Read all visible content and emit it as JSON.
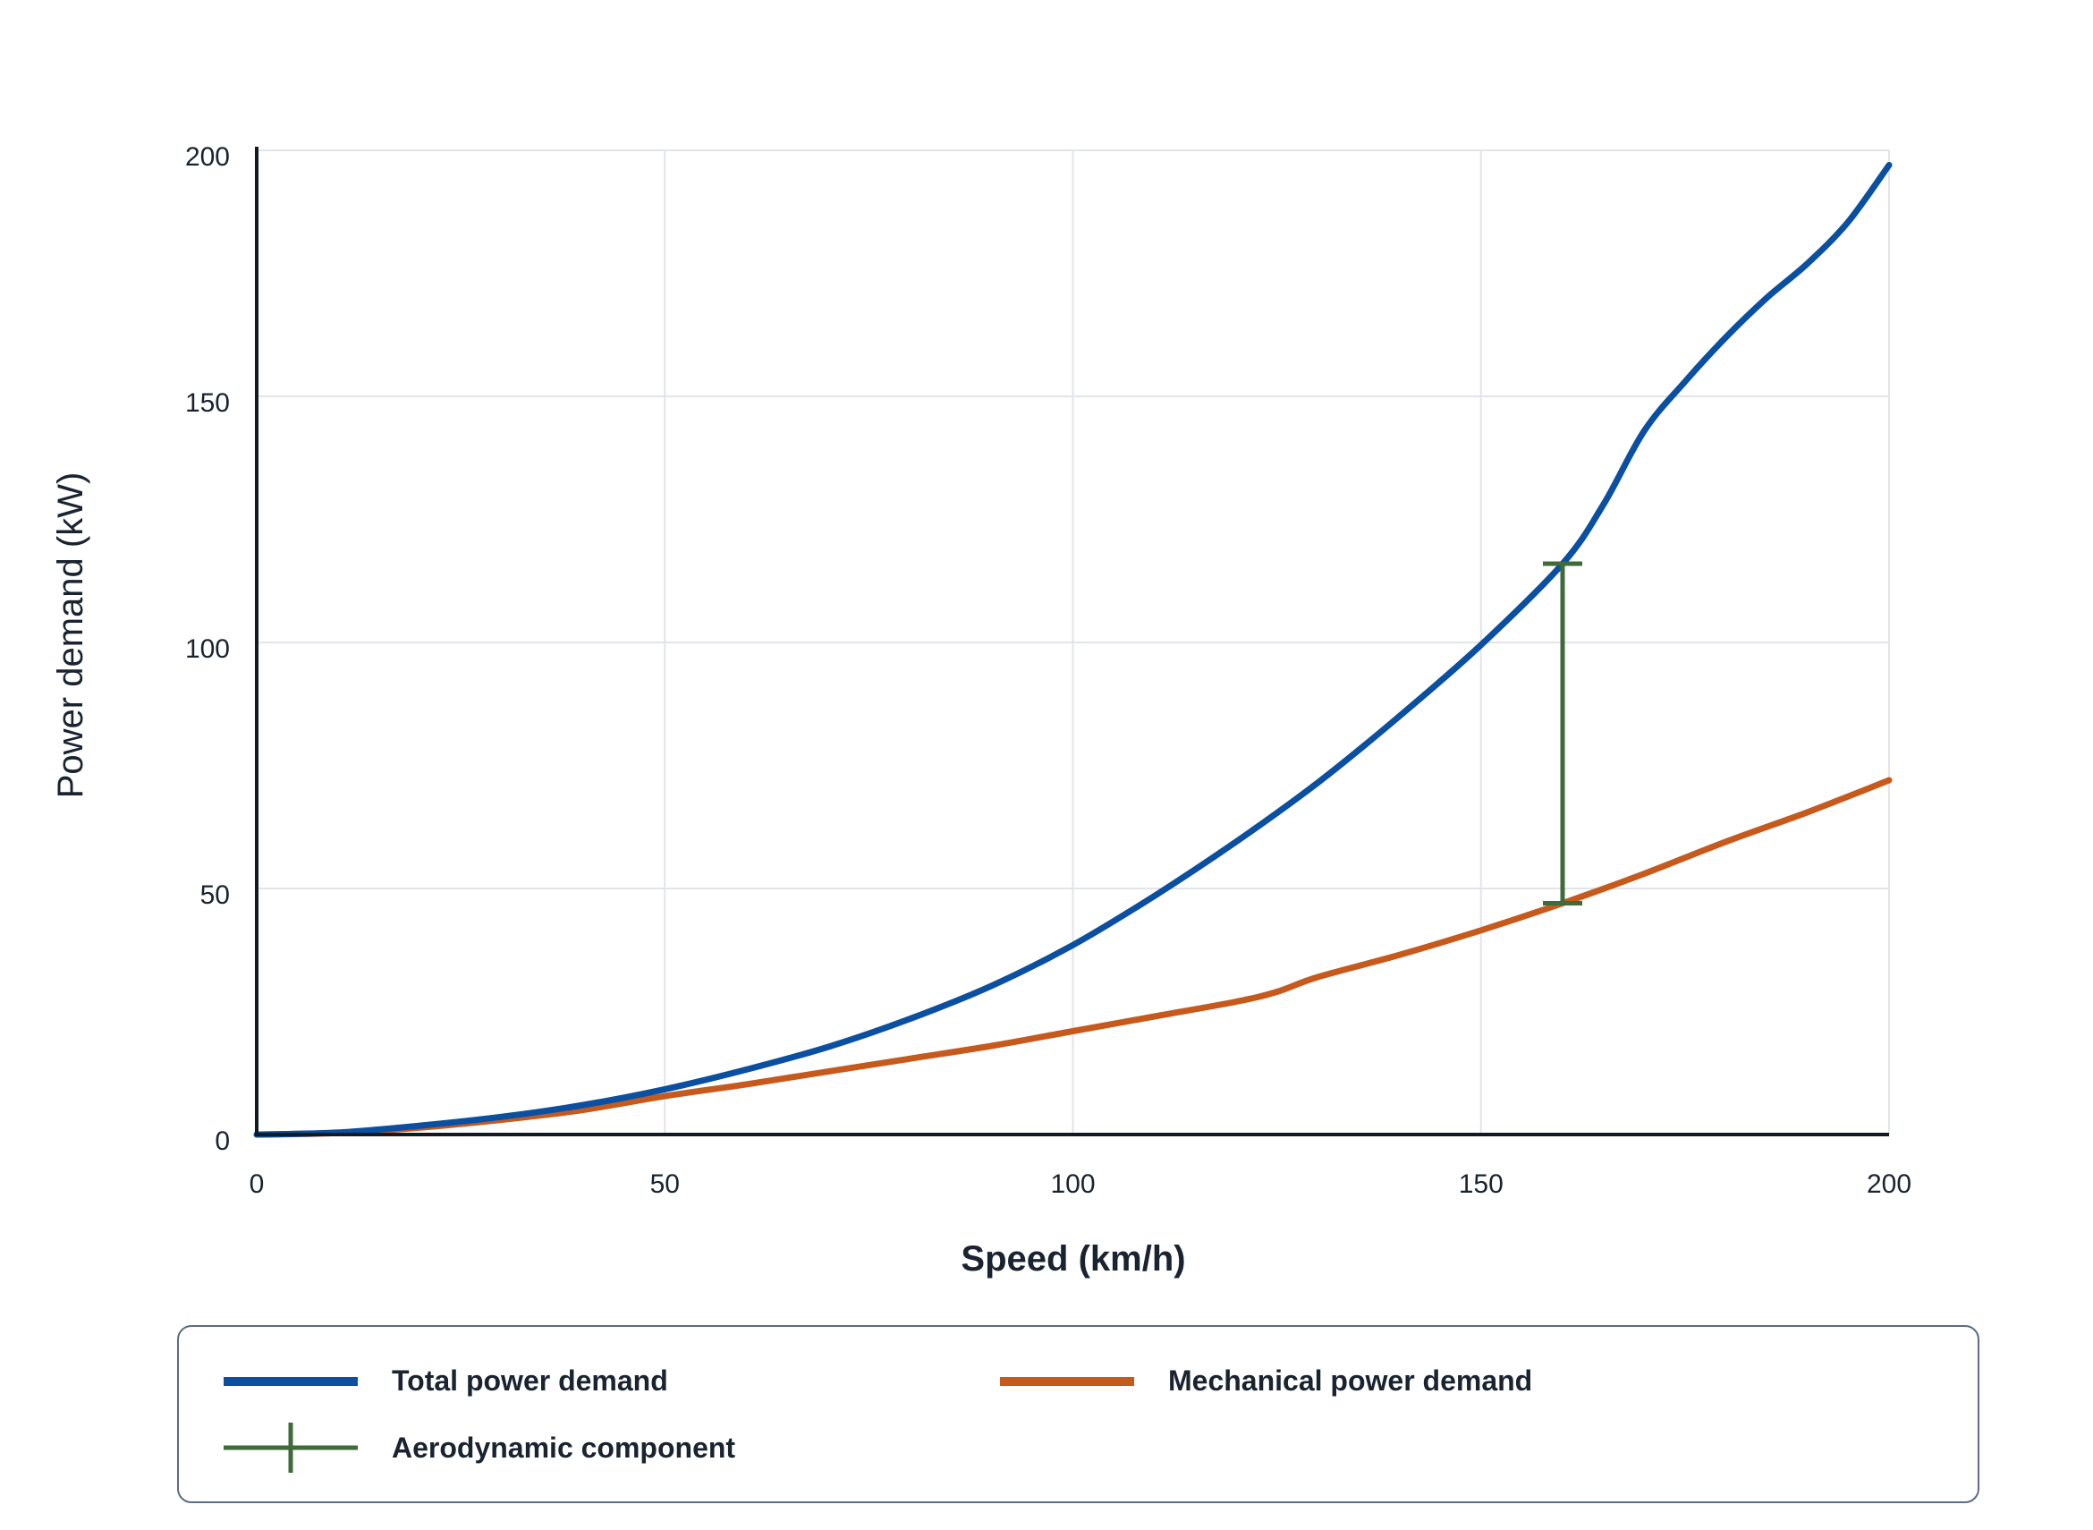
{
  "chart_data": {
    "type": "line",
    "xlabel": "Speed (km/h)",
    "ylabel": "Power demand (kW)",
    "xlim": [
      0,
      200
    ],
    "ylim": [
      0,
      200
    ],
    "xticks": [
      "0",
      "50",
      "100",
      "150",
      "200"
    ],
    "yticks": [
      "0",
      "50",
      "100",
      "150",
      "200"
    ],
    "grid": true,
    "legend_position": "bottom",
    "series": [
      {
        "name": "Total power demand",
        "color": "#0b4fa0",
        "x": [
          0,
          10,
          20,
          30,
          40,
          50,
          60,
          70,
          80,
          90,
          100,
          110,
          120,
          130,
          140,
          150,
          160,
          165,
          170,
          175,
          180,
          185,
          190,
          195,
          200
        ],
        "y": [
          0,
          0.4,
          1.8,
          3.6,
          6,
          9.2,
          13.2,
          17.8,
          23.5,
          30.2,
          38.5,
          48.5,
          59.5,
          71.5,
          85,
          99.5,
          116,
          128,
          143,
          153,
          162,
          170,
          177,
          185.5,
          197
        ]
      },
      {
        "name": "Mechanical power demand",
        "color": "#c65a1d",
        "x": [
          0,
          10,
          20,
          30,
          40,
          50,
          60,
          70,
          80,
          90,
          100,
          110,
          120,
          125,
          130,
          140,
          150,
          160,
          170,
          180,
          190,
          200
        ],
        "y": [
          0,
          0.3,
          1.4,
          3,
          5,
          7.8,
          10.2,
          12.8,
          15.4,
          18,
          21,
          24,
          27,
          29,
          32,
          36.5,
          41.5,
          47,
          53,
          59.5,
          65.5,
          72
        ]
      }
    ],
    "annotations": [
      {
        "name": "Aerodynamic component",
        "color": "#3f6a3a",
        "x": 160,
        "y_from": 47,
        "y_to": 116
      }
    ]
  }
}
